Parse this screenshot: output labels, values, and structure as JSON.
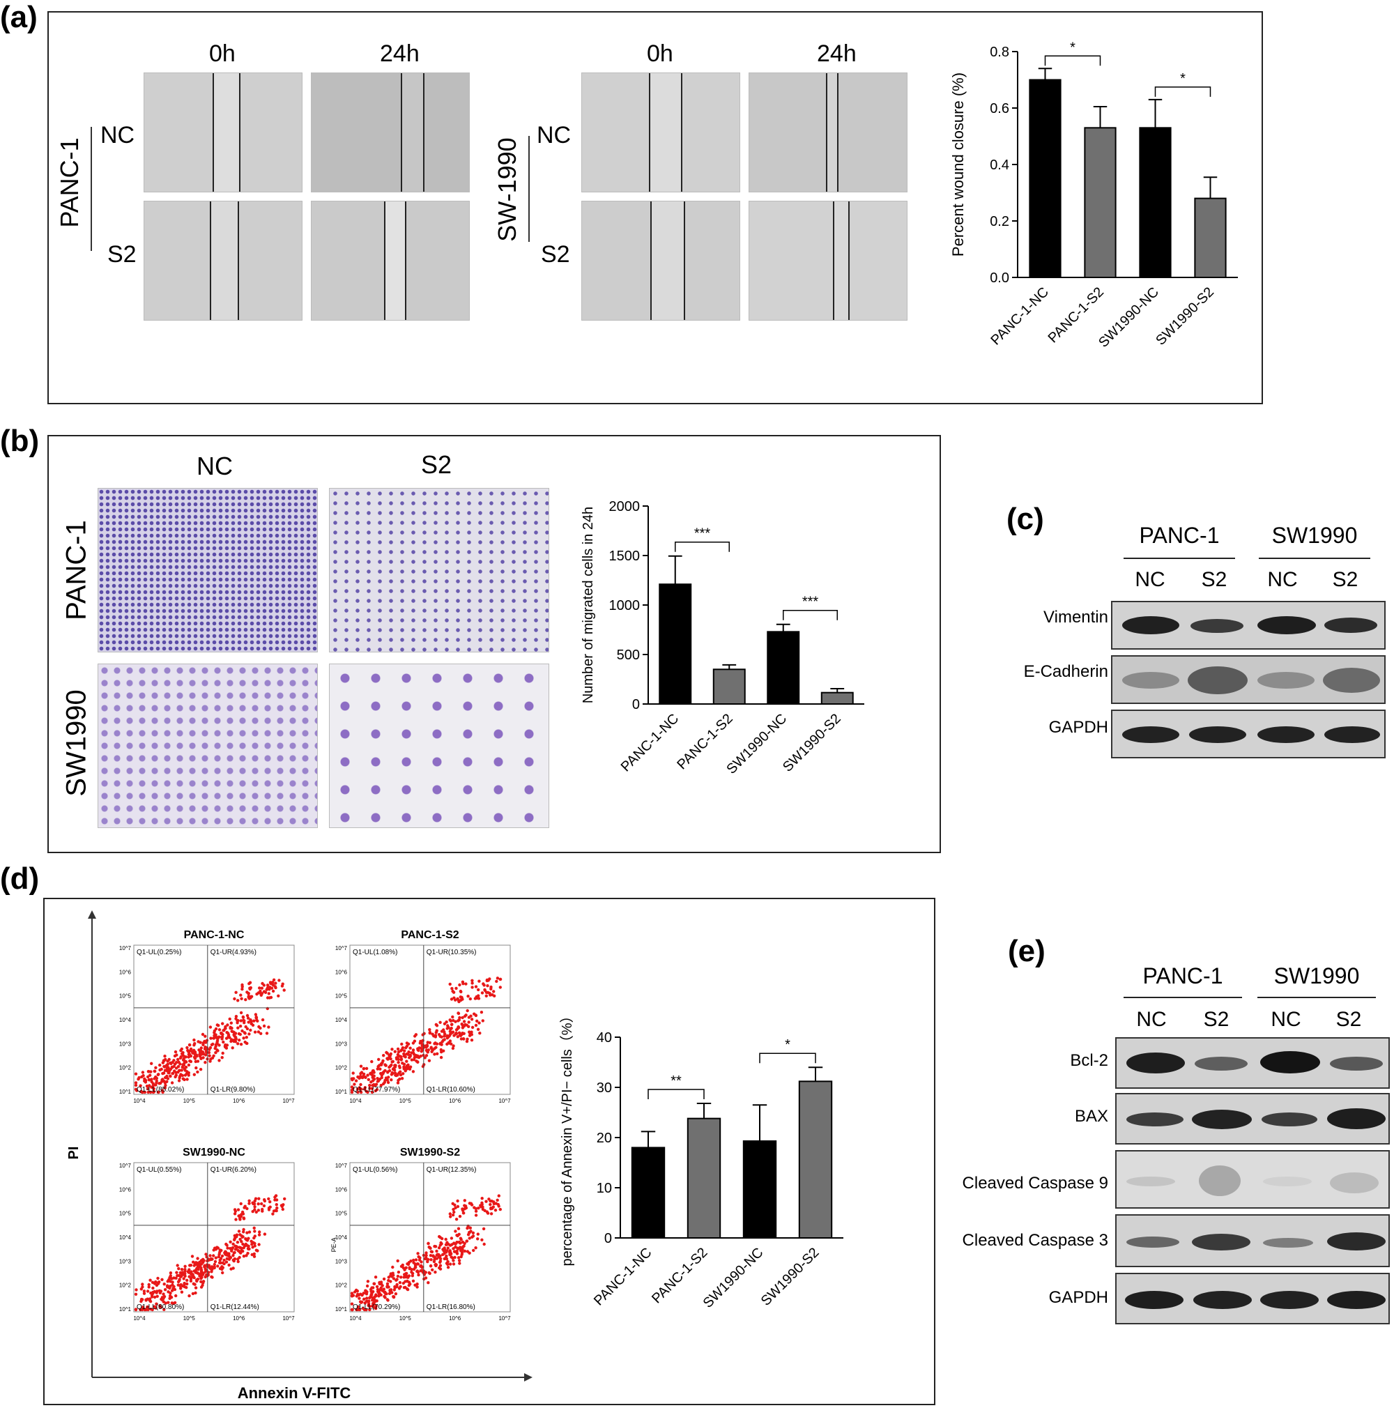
{
  "panels": {
    "a": "(a)",
    "b": "(b)",
    "c": "(c)",
    "d": "(d)",
    "e": "(e)"
  },
  "a": {
    "time_labels": [
      "0h",
      "24h",
      "0h",
      "24h"
    ],
    "cell_lines": [
      "PANC-1",
      "SW-1990"
    ],
    "row_labels": [
      "NC",
      "S2",
      "NC",
      "S2"
    ],
    "chart_data": {
      "type": "bar",
      "title": "",
      "xlabel": "",
      "ylabel": "Percent wound closure (%)",
      "ylim": [
        0,
        0.8
      ],
      "yticks": [
        "0.0",
        "0.2",
        "0.4",
        "0.6",
        "0.8"
      ],
      "categories": [
        "PANC-1-NC",
        "PANC-1-S2",
        "SW1990-NC",
        "SW1990-S2"
      ],
      "values": [
        0.7,
        0.53,
        0.53,
        0.28
      ],
      "errors": [
        0.04,
        0.075,
        0.1,
        0.075
      ],
      "colors": [
        "#000000",
        "#707070",
        "#000000",
        "#707070"
      ],
      "significance": [
        {
          "pair": [
            0,
            1
          ],
          "label": "*"
        },
        {
          "pair": [
            2,
            3
          ],
          "label": "*"
        }
      ]
    }
  },
  "b": {
    "col_labels": [
      "NC",
      "S2"
    ],
    "row_labels": [
      "PANC-1",
      "SW1990"
    ],
    "chart_data": {
      "type": "bar",
      "title": "",
      "xlabel": "",
      "ylabel": "Number of migrated cells in 24h",
      "ylim": [
        0,
        2000
      ],
      "yticks": [
        "0",
        "500",
        "1000",
        "1500",
        "2000"
      ],
      "categories": [
        "PANC-1-NC",
        "PANC-1-S2",
        "SW1990-NC",
        "SW1990-S2"
      ],
      "values": [
        1210,
        350,
        730,
        115
      ],
      "errors": [
        285,
        45,
        75,
        40
      ],
      "colors": [
        "#000000",
        "#707070",
        "#000000",
        "#707070"
      ],
      "significance": [
        {
          "pair": [
            0,
            1
          ],
          "label": "***"
        },
        {
          "pair": [
            2,
            3
          ],
          "label": "***"
        }
      ]
    }
  },
  "c": {
    "groups": [
      "PANC-1",
      "SW1990"
    ],
    "lanes": [
      "NC",
      "S2",
      "NC",
      "S2"
    ],
    "rows": [
      "Vimentin",
      "E-Cadherin",
      "GAPDH"
    ]
  },
  "d": {
    "y_axis": "PI",
    "x_axis": "Annexin V-FITC",
    "plots": [
      {
        "title": "PANC-1-NC",
        "ul": "Q1-UL(0.25%)",
        "ur": "Q1-UR(4.93%)",
        "ll": "Q1-LL(85.02%)",
        "lr": "Q1-LR(9.80%)"
      },
      {
        "title": "PANC-1-S2",
        "ul": "Q1-UL(1.08%)",
        "ur": "Q1-UR(10.35%)",
        "ll": "Q1-LL(77.97%)",
        "lr": "Q1-LR(10.60%)"
      },
      {
        "title": "SW1990-NC",
        "ul": "Q1-UL(0.55%)",
        "ur": "Q1-UR(6.20%)",
        "ll": "Q1-LL(80.80%)",
        "lr": "Q1-LR(12.44%)"
      },
      {
        "title": "SW1990-S2",
        "ul": "Q1-UL(0.56%)",
        "ur": "Q1-UR(12.35%)",
        "ll": "Q1-LL(70.29%)",
        "lr": "Q1-LR(16.80%)"
      }
    ],
    "flow_yticks": [
      "10^7",
      "10^6",
      "10^5",
      "10^4",
      "10^3",
      "10^2",
      "10^1"
    ],
    "flow_xticks": [
      "10^4",
      "10^5",
      "10^6",
      "10^7"
    ],
    "pe_label": "PE-A",
    "chart_data": {
      "type": "bar",
      "title": "",
      "xlabel": "",
      "ylabel": "percentage of Annexin V+/PI− cells（%）",
      "ylim": [
        0,
        40
      ],
      "yticks": [
        "0",
        "10",
        "20",
        "30",
        "40"
      ],
      "categories": [
        "PANC-1-NC",
        "PANC-1-S2",
        "SW1990-NC",
        "SW1990-S2"
      ],
      "values": [
        18,
        23.8,
        19.3,
        31.2
      ],
      "errors": [
        3.2,
        3.0,
        7.2,
        2.8
      ],
      "colors": [
        "#000000",
        "#707070",
        "#000000",
        "#707070"
      ],
      "significance": [
        {
          "pair": [
            0,
            1
          ],
          "label": "**"
        },
        {
          "pair": [
            2,
            3
          ],
          "label": "*"
        }
      ]
    }
  },
  "e": {
    "groups": [
      "PANC-1",
      "SW1990"
    ],
    "lanes": [
      "NC",
      "S2",
      "NC",
      "S2"
    ],
    "rows": [
      "Bcl-2",
      "BAX",
      "Cleaved Caspase 9",
      "Cleaved Caspase 3",
      "GAPDH"
    ]
  }
}
